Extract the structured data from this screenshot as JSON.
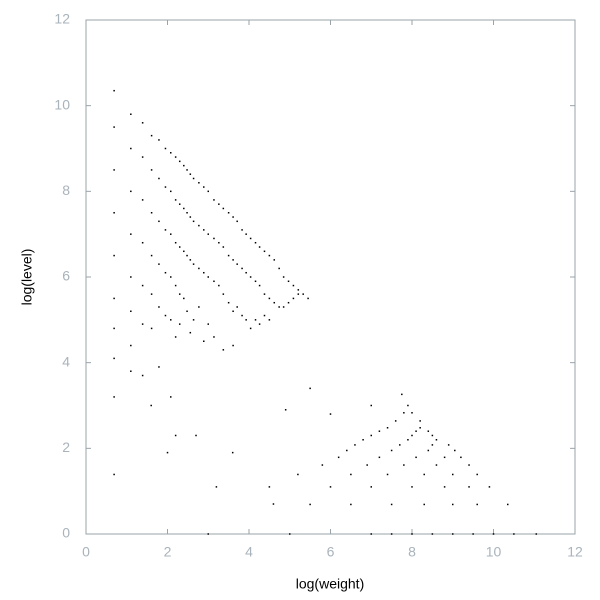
{
  "chart_data": {
    "type": "scatter",
    "xlabel": "log(weight)",
    "ylabel": "log(level)",
    "color": "#000000",
    "xlim": [
      0,
      12
    ],
    "ylim": [
      0,
      12
    ],
    "xticks": [
      0,
      2,
      4,
      6,
      8,
      10,
      12
    ],
    "yticks": [
      0,
      2,
      4,
      6,
      8,
      10,
      12
    ],
    "x": [
      0.69,
      0.69,
      0.69,
      0.69,
      0.69,
      0.69,
      0.69,
      0.69,
      0.69,
      0.69,
      1.1,
      1.1,
      1.1,
      1.1,
      1.1,
      1.1,
      1.1,
      1.1,
      1.39,
      1.39,
      1.39,
      1.39,
      1.39,
      1.39,
      1.39,
      1.61,
      1.61,
      1.61,
      1.61,
      1.61,
      1.61,
      1.79,
      1.79,
      1.79,
      1.79,
      1.79,
      1.79,
      1.95,
      1.95,
      1.95,
      1.95,
      1.95,
      2.08,
      2.08,
      2.08,
      2.08,
      2.08,
      2.08,
      2.2,
      2.2,
      2.2,
      2.2,
      2.2,
      2.3,
      2.3,
      2.3,
      2.3,
      2.3,
      2.4,
      2.4,
      2.4,
      2.4,
      2.48,
      2.48,
      2.48,
      2.48,
      2.56,
      2.56,
      2.56,
      2.56,
      2.64,
      2.64,
      2.64,
      2.64,
      2.77,
      2.77,
      2.77,
      2.77,
      2.89,
      2.89,
      2.89,
      2.89,
      3.0,
      3.0,
      3.0,
      3.0,
      3.14,
      3.14,
      3.14,
      3.14,
      3.26,
      3.26,
      3.26,
      3.37,
      3.37,
      3.37,
      3.37,
      3.5,
      3.5,
      3.5,
      3.61,
      3.61,
      3.61,
      3.61,
      3.71,
      3.71,
      3.71,
      3.83,
      3.83,
      3.83,
      3.93,
      3.93,
      3.93,
      4.04,
      4.04,
      4.04,
      4.16,
      4.16,
      4.16,
      4.26,
      4.26,
      4.26,
      4.38,
      4.38,
      4.38,
      4.5,
      4.5,
      4.5,
      4.62,
      4.62,
      4.74,
      4.74,
      4.85,
      4.85,
      4.97,
      4.97,
      5.09,
      5.09,
      5.21,
      5.21,
      5.33,
      5.45,
      2.2,
      1.6,
      2.7,
      3.2,
      4.6,
      5.5,
      4.9,
      6.0,
      2.0,
      3.6,
      3.0,
      5.0,
      7.0,
      7.5,
      8.0,
      8.5,
      9.0,
      9.5,
      10.0,
      10.5,
      11.05,
      5.5,
      6.5,
      7.5,
      8.3,
      9.0,
      9.6,
      10.35,
      4.5,
      6.0,
      7.0,
      8.0,
      8.8,
      9.4,
      9.9,
      5.2,
      6.5,
      7.4,
      8.3,
      9.0,
      9.6,
      5.8,
      6.9,
      7.8,
      8.6,
      9.4,
      6.2,
      7.2,
      8.1,
      8.8,
      9.2,
      6.4,
      7.5,
      8.4,
      9.05,
      6.6,
      7.7,
      8.5,
      8.9,
      6.8,
      7.9,
      8.6,
      7.0,
      8.0,
      8.5,
      7.2,
      8.1,
      8.4,
      7.4,
      8.2,
      7.6,
      8.2,
      7.8,
      8.0,
      7.0,
      7.9,
      7.75
    ],
    "values": [
      10.35,
      9.5,
      8.5,
      7.5,
      6.5,
      5.5,
      4.8,
      4.1,
      3.2,
      1.39,
      9.8,
      9.0,
      8.0,
      7.0,
      6.0,
      5.2,
      4.4,
      3.8,
      9.6,
      8.8,
      7.8,
      6.8,
      5.8,
      4.9,
      3.7,
      9.3,
      8.5,
      7.5,
      6.5,
      5.6,
      4.8,
      9.2,
      8.3,
      7.3,
      6.3,
      5.3,
      3.9,
      9.0,
      8.1,
      7.1,
      6.1,
      5.1,
      8.9,
      8.0,
      7.0,
      6.0,
      5.0,
      3.2,
      8.8,
      7.8,
      6.8,
      5.8,
      4.6,
      8.7,
      7.7,
      6.7,
      5.6,
      4.9,
      8.6,
      7.6,
      6.6,
      5.5,
      8.5,
      7.5,
      6.5,
      5.2,
      8.4,
      7.4,
      6.4,
      4.7,
      8.3,
      7.3,
      6.3,
      5.0,
      8.2,
      7.2,
      6.2,
      5.3,
      8.1,
      7.1,
      6.1,
      4.5,
      8.0,
      7.0,
      6.0,
      4.9,
      7.8,
      6.9,
      5.9,
      4.6,
      7.7,
      6.8,
      5.8,
      7.6,
      6.7,
      5.6,
      4.3,
      7.5,
      6.5,
      5.4,
      7.4,
      6.4,
      5.2,
      4.4,
      7.3,
      6.3,
      5.3,
      7.1,
      6.2,
      5.1,
      7.0,
      6.1,
      5.0,
      6.9,
      6.0,
      4.8,
      6.8,
      5.9,
      5.0,
      6.7,
      5.8,
      4.9,
      6.6,
      5.6,
      5.1,
      6.5,
      5.5,
      5.0,
      6.4,
      5.4,
      6.2,
      5.3,
      6.0,
      5.3,
      5.9,
      5.4,
      5.8,
      5.5,
      5.7,
      5.6,
      5.6,
      5.5,
      2.3,
      3.0,
      2.3,
      1.1,
      0.7,
      3.4,
      2.9,
      2.8,
      1.9,
      1.9,
      0,
      0,
      0,
      0,
      0,
      0,
      0,
      0,
      0,
      0,
      0,
      0.69,
      0.69,
      0.69,
      0.69,
      0.69,
      0.69,
      0.69,
      1.1,
      1.1,
      1.1,
      1.1,
      1.1,
      1.1,
      1.1,
      1.39,
      1.39,
      1.39,
      1.39,
      1.39,
      1.39,
      1.61,
      1.61,
      1.61,
      1.61,
      1.61,
      1.79,
      1.79,
      1.79,
      1.79,
      1.79,
      1.95,
      1.95,
      1.95,
      1.95,
      2.08,
      2.08,
      2.08,
      2.08,
      2.2,
      2.2,
      2.2,
      2.3,
      2.3,
      2.3,
      2.4,
      2.4,
      2.4,
      2.48,
      2.48,
      2.64,
      2.64,
      2.83,
      2.83,
      3.0,
      3.0,
      3.26
    ]
  }
}
